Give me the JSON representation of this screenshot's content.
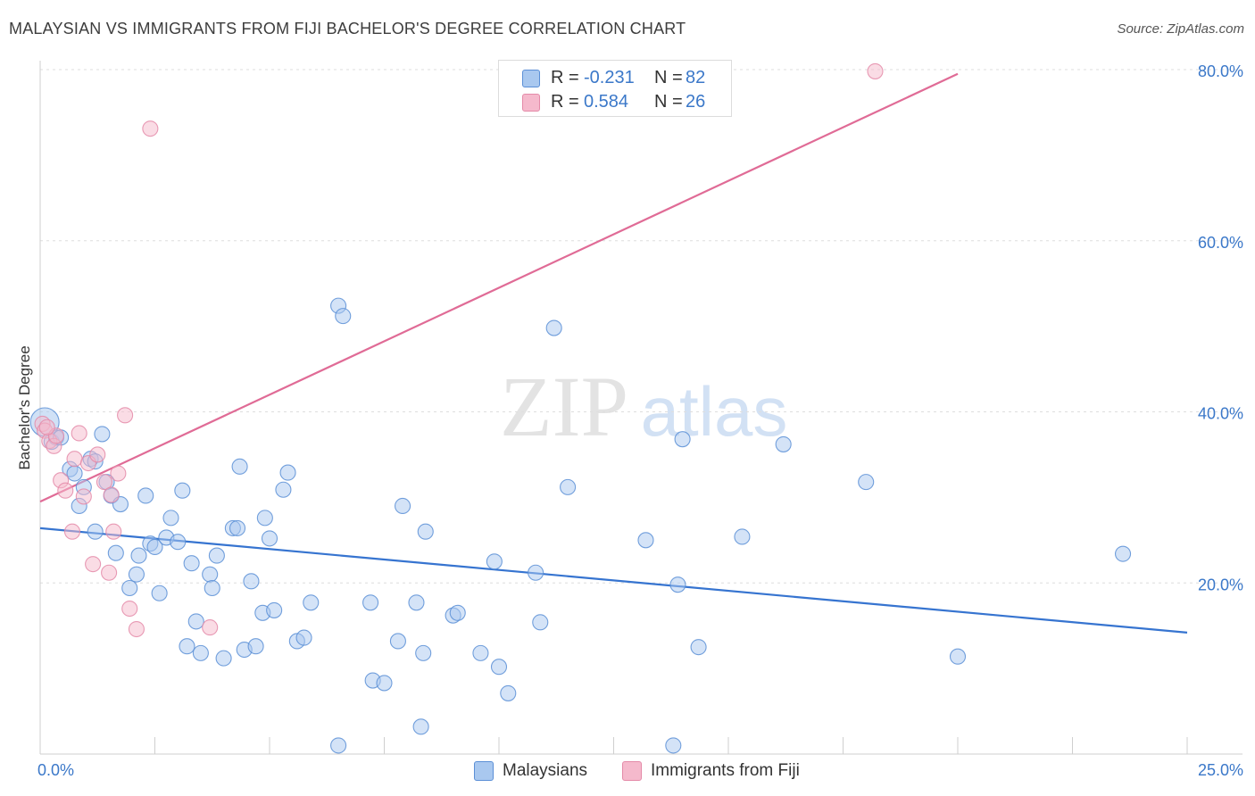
{
  "title": "MALAYSIAN VS IMMIGRANTS FROM FIJI BACHELOR'S DEGREE CORRELATION CHART",
  "source": "Source: ZipAtlas.com",
  "watermark": {
    "zip": "ZIP",
    "atlas": "atlas"
  },
  "colors": {
    "blue_fill": "#a9c8ef",
    "blue_stroke": "#5b8fd6",
    "blue_line": "#3674d0",
    "pink_fill": "#f5b9cc",
    "pink_stroke": "#e48aa8",
    "pink_line": "#e06b96",
    "axis_text": "#3b78c9"
  },
  "legend_top": [
    {
      "r_label": "R =",
      "r_value": "-0.231",
      "n_label": "N =",
      "n_value": "82"
    },
    {
      "r_label": "R =",
      "r_value": "0.584",
      "n_label": "N =",
      "n_value": "26"
    }
  ],
  "legend_bottom": [
    {
      "label": "Malaysians"
    },
    {
      "label": "Immigrants from Fiji"
    }
  ],
  "chart_data": {
    "type": "scatter",
    "title": "MALAYSIAN VS IMMIGRANTS FROM FIJI BACHELOR'S DEGREE CORRELATION CHART",
    "xlabel": "",
    "ylabel": "Bachelor's Degree",
    "xlim": [
      0,
      25
    ],
    "ylim": [
      0,
      80
    ],
    "x_tick_labels": [
      "0.0%",
      "25.0%"
    ],
    "y_ticks": [
      20,
      40,
      60,
      80
    ],
    "y_tick_labels": [
      "20.0%",
      "40.0%",
      "60.0%",
      "80.0%"
    ],
    "grid": true,
    "legend_placement": "top-center",
    "series": [
      {
        "name": "Malaysians",
        "r": -0.231,
        "n": 82,
        "trend": [
          [
            0,
            26.4
          ],
          [
            25,
            14.2
          ]
        ],
        "points": [
          [
            0.1,
            38.8
          ],
          [
            0.25,
            36.5
          ],
          [
            0.35,
            37.0
          ],
          [
            0.45,
            37.0
          ],
          [
            0.65,
            33.3
          ],
          [
            0.75,
            32.8
          ],
          [
            0.85,
            29.0
          ],
          [
            0.95,
            31.2
          ],
          [
            1.1,
            34.5
          ],
          [
            1.2,
            26.0
          ],
          [
            1.35,
            37.4
          ],
          [
            1.45,
            31.8
          ],
          [
            1.55,
            30.2
          ],
          [
            1.65,
            23.5
          ],
          [
            1.75,
            29.2
          ],
          [
            1.95,
            19.4
          ],
          [
            2.1,
            21.0
          ],
          [
            2.15,
            23.2
          ],
          [
            2.3,
            30.2
          ],
          [
            2.4,
            24.6
          ],
          [
            2.5,
            24.2
          ],
          [
            2.6,
            18.8
          ],
          [
            2.75,
            25.3
          ],
          [
            2.85,
            27.6
          ],
          [
            3.0,
            24.8
          ],
          [
            3.1,
            30.8
          ],
          [
            3.2,
            12.6
          ],
          [
            3.3,
            22.3
          ],
          [
            3.4,
            15.5
          ],
          [
            3.5,
            11.8
          ],
          [
            3.7,
            21.0
          ],
          [
            3.75,
            19.4
          ],
          [
            3.85,
            23.2
          ],
          [
            4.0,
            11.2
          ],
          [
            4.2,
            26.4
          ],
          [
            4.3,
            26.4
          ],
          [
            4.35,
            33.6
          ],
          [
            4.45,
            12.2
          ],
          [
            4.6,
            20.2
          ],
          [
            4.7,
            12.6
          ],
          [
            4.85,
            16.5
          ],
          [
            4.9,
            27.6
          ],
          [
            5.0,
            25.2
          ],
          [
            5.1,
            16.8
          ],
          [
            5.3,
            30.9
          ],
          [
            5.4,
            32.9
          ],
          [
            5.6,
            13.2
          ],
          [
            5.75,
            13.6
          ],
          [
            5.9,
            17.7
          ],
          [
            6.5,
            52.4
          ],
          [
            6.6,
            51.2
          ],
          [
            7.2,
            17.7
          ],
          [
            7.25,
            8.6
          ],
          [
            7.5,
            8.3
          ],
          [
            7.8,
            13.2
          ],
          [
            7.9,
            29.0
          ],
          [
            8.2,
            17.7
          ],
          [
            8.3,
            3.2
          ],
          [
            8.35,
            11.8
          ],
          [
            8.4,
            26.0
          ],
          [
            9.0,
            16.2
          ],
          [
            9.1,
            16.5
          ],
          [
            9.6,
            11.8
          ],
          [
            9.9,
            22.5
          ],
          [
            10.0,
            10.2
          ],
          [
            10.2,
            7.1
          ],
          [
            10.8,
            21.2
          ],
          [
            10.9,
            15.4
          ],
          [
            11.2,
            49.8
          ],
          [
            11.5,
            31.2
          ],
          [
            13.2,
            25.0
          ],
          [
            13.8,
            1.0
          ],
          [
            13.9,
            19.8
          ],
          [
            14.0,
            36.8
          ],
          [
            14.35,
            12.5
          ],
          [
            15.3,
            25.4
          ],
          [
            16.2,
            36.2
          ],
          [
            18.0,
            31.8
          ],
          [
            20.0,
            11.4
          ],
          [
            23.6,
            23.4
          ],
          [
            6.5,
            1.0
          ],
          [
            1.2,
            34.2
          ]
        ]
      },
      {
        "name": "Immigrants from Fiji",
        "r": 0.584,
        "n": 26,
        "trend": [
          [
            0,
            29.5
          ],
          [
            20,
            79.5
          ]
        ],
        "points": [
          [
            0.05,
            38.6
          ],
          [
            0.1,
            37.8
          ],
          [
            0.2,
            36.6
          ],
          [
            0.3,
            36.0
          ],
          [
            0.45,
            32.0
          ],
          [
            0.55,
            30.8
          ],
          [
            0.7,
            26.0
          ],
          [
            0.75,
            34.5
          ],
          [
            0.85,
            37.5
          ],
          [
            0.95,
            30.1
          ],
          [
            1.05,
            34.0
          ],
          [
            1.15,
            22.2
          ],
          [
            1.25,
            35.0
          ],
          [
            1.4,
            31.8
          ],
          [
            1.5,
            21.2
          ],
          [
            1.6,
            26.0
          ],
          [
            1.7,
            32.8
          ],
          [
            1.85,
            39.6
          ],
          [
            1.95,
            17.0
          ],
          [
            2.1,
            14.6
          ],
          [
            2.4,
            73.1
          ],
          [
            3.7,
            14.8
          ],
          [
            18.2,
            79.8
          ],
          [
            0.35,
            37.2
          ],
          [
            1.55,
            30.3
          ],
          [
            0.15,
            38.2
          ]
        ]
      }
    ]
  }
}
